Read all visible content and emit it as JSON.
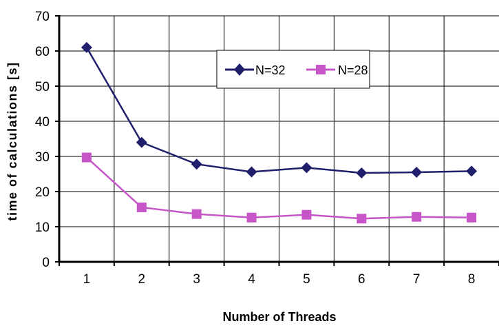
{
  "chart_data": {
    "type": "line",
    "xlabel": "Number of Threads",
    "ylabel": "time of calculations [s]",
    "categories": [
      "1",
      "2",
      "3",
      "4",
      "5",
      "6",
      "7",
      "8"
    ],
    "x": [
      1,
      2,
      3,
      4,
      5,
      6,
      7,
      8
    ],
    "ylim": [
      0,
      70
    ],
    "yticks": [
      "0",
      "10",
      "20",
      "30",
      "40",
      "50",
      "60",
      "70"
    ],
    "grid": true,
    "legend_position": "top-right",
    "series": [
      {
        "name": "N=32",
        "values": [
          61,
          34,
          27.8,
          25.6,
          26.8,
          25.3,
          25.5,
          25.8
        ],
        "color": "#1f1f6b",
        "marker": "diamond"
      },
      {
        "name": "N=28",
        "values": [
          29.7,
          15.5,
          13.6,
          12.6,
          13.4,
          12.3,
          12.8,
          12.6
        ],
        "color": "#c656c8",
        "marker": "square"
      }
    ]
  }
}
